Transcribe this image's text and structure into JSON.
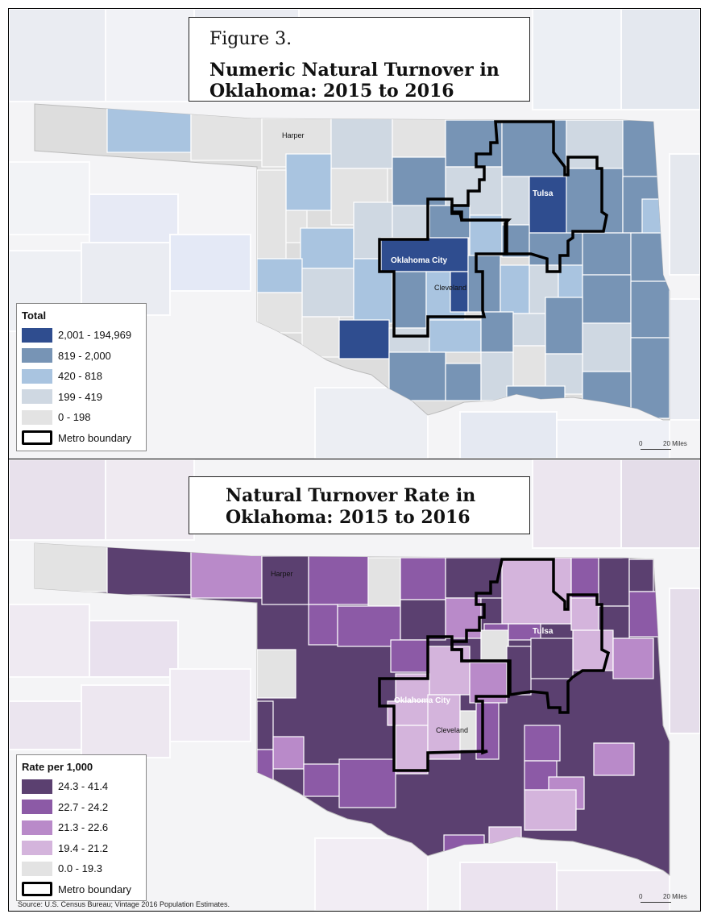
{
  "panels": [
    {
      "figure_label": "Figure 3.",
      "title_line1": "Numeric Natural Turnover in",
      "title_line2": "Oklahoma: 2015 to 2016",
      "legend_title": "Total",
      "legend": [
        {
          "label": "2,001 - 194,969",
          "color": "#2f4d8f"
        },
        {
          "label": "819 - 2,000",
          "color": "#7794b5"
        },
        {
          "label": "420 - 818",
          "color": "#a9c4e0"
        },
        {
          "label": "199 - 419",
          "color": "#cfd8e2"
        },
        {
          "label": "0 - 198",
          "color": "#e3e3e3"
        }
      ],
      "metro_label": "Metro boundary",
      "place_labels": {
        "harper": "Harper",
        "tulsa": "Tulsa",
        "okc": "Oklahoma City",
        "cleveland": "Cleveland"
      },
      "scale": {
        "zero": "0",
        "distance": "20 Miles"
      }
    },
    {
      "figure_label": "",
      "title_line1": "Natural Turnover Rate in",
      "title_line2": "Oklahoma: 2015 to 2016",
      "legend_title": "Rate per 1,000",
      "legend": [
        {
          "label": "24.3 - 41.4",
          "color": "#5b4070"
        },
        {
          "label": "22.7 - 24.2",
          "color": "#8c5aa6"
        },
        {
          "label": "21.3 - 22.6",
          "color": "#b98ac9"
        },
        {
          "label": "19.4 - 21.2",
          "color": "#d4b4dc"
        },
        {
          "label": "0.0 - 19.3",
          "color": "#e3e3e3"
        }
      ],
      "metro_label": "Metro boundary",
      "place_labels": {
        "harper": "Harper",
        "tulsa": "Tulsa",
        "okc": "Oklahoma City",
        "cleveland": "Cleveland"
      },
      "scale": {
        "zero": "0",
        "distance": "20 Miles"
      }
    }
  ],
  "source": "Source: U.S. Census Bureau; Vintage 2016 Population Estimates."
}
